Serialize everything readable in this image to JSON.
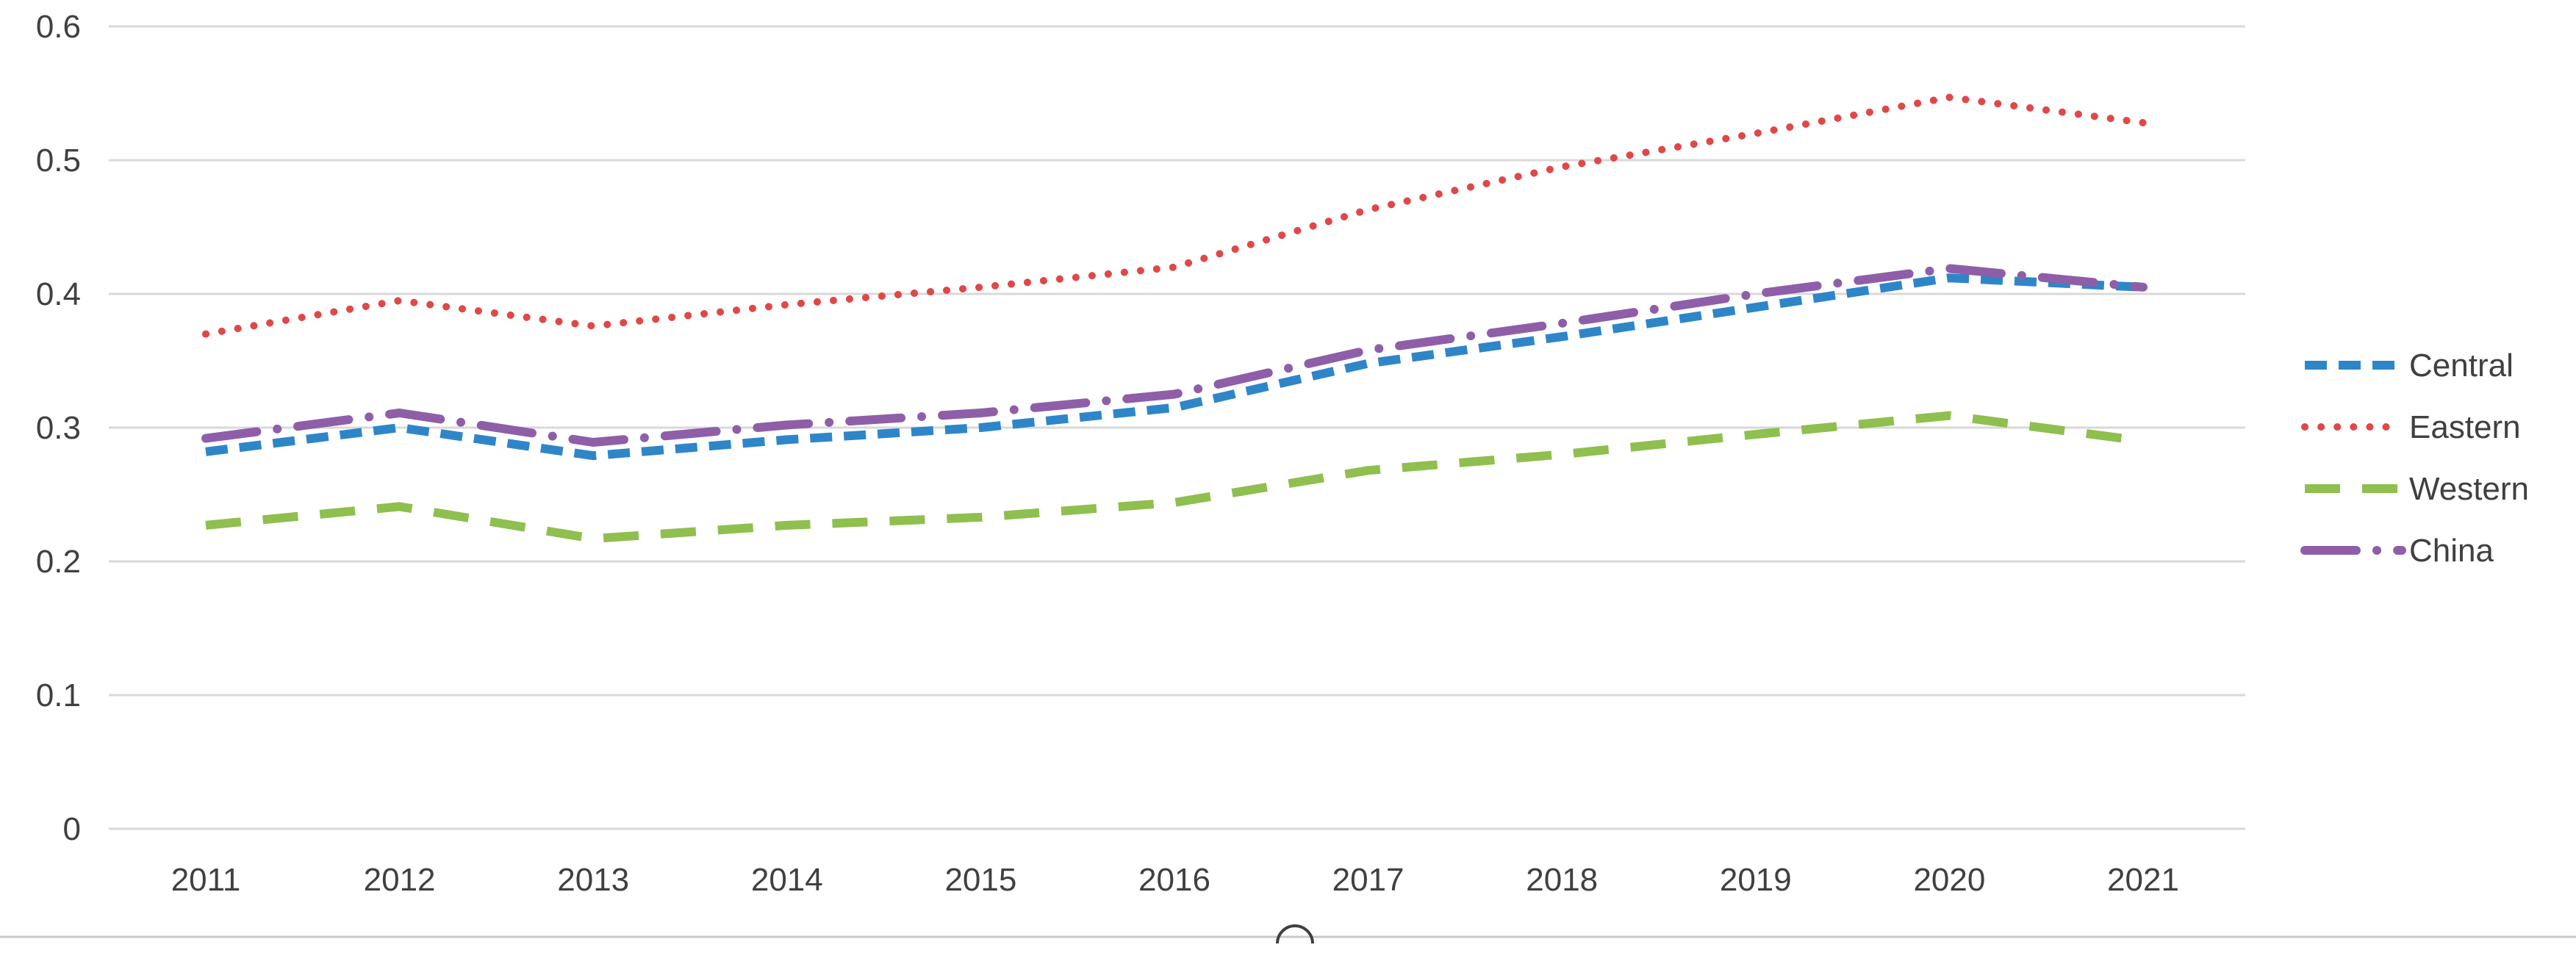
{
  "chart_data": {
    "type": "line",
    "title": "",
    "xlabel": "",
    "ylabel": "",
    "x": [
      "2011",
      "2012",
      "2013",
      "2014",
      "2015",
      "2016",
      "2017",
      "2018",
      "2019",
      "2020",
      "2021"
    ],
    "ylim": [
      0,
      0.6
    ],
    "yticks": [
      "0",
      "0.1",
      "0.2",
      "0.3",
      "0.4",
      "0.5",
      "0.6"
    ],
    "grid": true,
    "legend_position": "right",
    "series": [
      {
        "name": "Central",
        "color": "#2e86c9",
        "style": "dashed",
        "values": [
          0.282,
          0.3,
          0.279,
          0.291,
          0.3,
          0.315,
          0.348,
          0.368,
          0.39,
          0.412,
          0.405
        ]
      },
      {
        "name": "Eastern",
        "color": "#e04848",
        "style": "dotted",
        "values": [
          0.37,
          0.395,
          0.376,
          0.392,
          0.405,
          0.42,
          0.463,
          0.495,
          0.52,
          0.547,
          0.528
        ]
      },
      {
        "name": "Western",
        "color": "#8fbf4e",
        "style": "long-dash",
        "values": [
          0.227,
          0.241,
          0.217,
          0.227,
          0.233,
          0.244,
          0.268,
          0.28,
          0.295,
          0.309,
          0.29
        ]
      },
      {
        "name": "China",
        "color": "#8e5fa8",
        "style": "dash-dot",
        "values": [
          0.292,
          0.311,
          0.289,
          0.302,
          0.311,
          0.325,
          0.358,
          0.378,
          0.4,
          0.419,
          0.405
        ]
      }
    ]
  }
}
